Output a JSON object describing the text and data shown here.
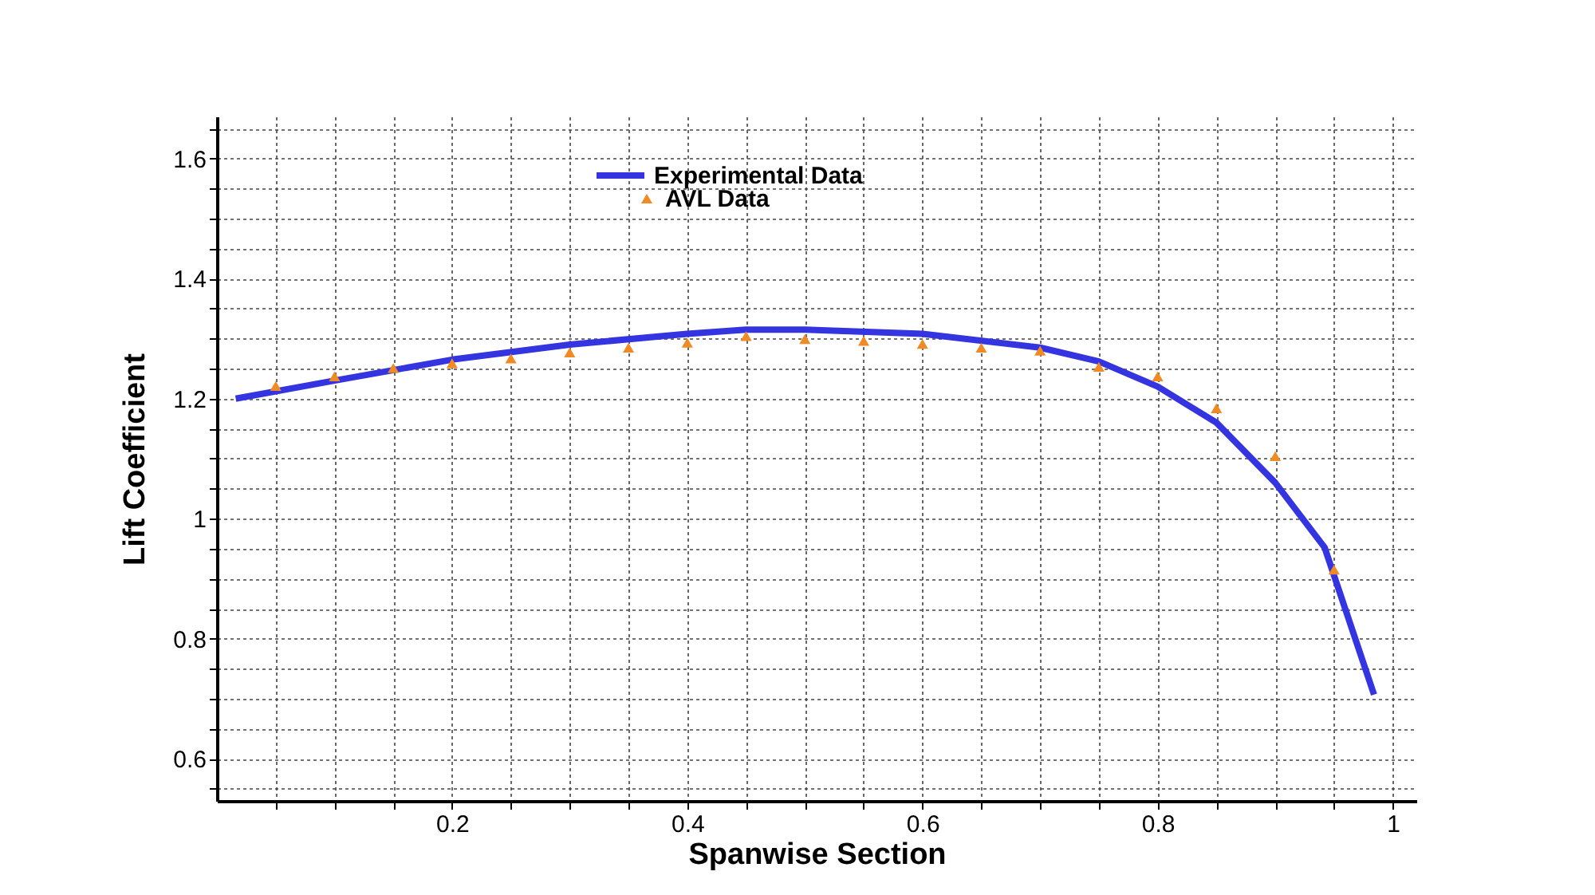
{
  "chart_data": {
    "type": "line",
    "xlabel": "Spanwise Section",
    "ylabel": "Lift Coefficient",
    "xlim": [
      0,
      1.02
    ],
    "ylim": [
      0.53,
      1.67
    ],
    "xticks": [
      {
        "value": 0.05,
        "label": null
      },
      {
        "value": 0.1,
        "label": null
      },
      {
        "value": 0.15,
        "label": null
      },
      0.2,
      {
        "value": 0.25,
        "label": null
      },
      {
        "value": 0.3,
        "label": null
      },
      {
        "value": 0.35,
        "label": null
      },
      0.4,
      {
        "value": 0.45,
        "label": null
      },
      {
        "value": 0.5,
        "label": null
      },
      {
        "value": 0.55,
        "label": null
      },
      0.6,
      {
        "value": 0.65,
        "label": null
      },
      {
        "value": 0.7,
        "label": null
      },
      {
        "value": 0.75,
        "label": null
      },
      0.8,
      {
        "value": 0.85,
        "label": null
      },
      {
        "value": 0.9,
        "label": null
      },
      {
        "value": 0.95,
        "label": null
      },
      1
    ],
    "yticks": [
      {
        "value": 0.55,
        "label": null
      },
      0.6,
      {
        "value": 0.65,
        "label": null
      },
      {
        "value": 0.7,
        "label": null
      },
      {
        "value": 0.75,
        "label": null
      },
      0.8,
      {
        "value": 0.85,
        "label": null
      },
      {
        "value": 0.9,
        "label": null
      },
      {
        "value": 0.95,
        "label": null
      },
      1,
      {
        "value": 1.05,
        "label": null
      },
      {
        "value": 1.1,
        "label": null
      },
      {
        "value": 1.15,
        "label": null
      },
      1.2,
      {
        "value": 1.25,
        "label": null
      },
      {
        "value": 1.3,
        "label": null
      },
      {
        "value": 1.35,
        "label": null
      },
      1.4,
      {
        "value": 1.45,
        "label": null
      },
      {
        "value": 1.5,
        "label": null
      },
      {
        "value": 1.55,
        "label": null
      },
      1.6,
      {
        "value": 1.65,
        "label": null
      }
    ],
    "grid": true,
    "legend": "top",
    "series": [
      {
        "name": "Experimental Data",
        "type": "line",
        "color": "#3434e0",
        "line_style": "solid",
        "x": [
          0.016,
          0.1,
          0.2,
          0.3,
          0.4,
          0.45,
          0.5,
          0.6,
          0.7,
          0.75,
          0.8,
          0.85,
          0.9,
          0.942,
          0.984
        ],
        "values": [
          1.2,
          1.23,
          1.265,
          1.29,
          1.308,
          1.315,
          1.315,
          1.308,
          1.285,
          1.262,
          1.22,
          1.16,
          1.06,
          0.952,
          0.707
        ]
      },
      {
        "name": "AVL Data",
        "type": "scatter",
        "marker": "triangle",
        "color": "#f08a24",
        "x": [
          0.05,
          0.1,
          0.15,
          0.2,
          0.25,
          0.3,
          0.35,
          0.4,
          0.45,
          0.5,
          0.55,
          0.6,
          0.65,
          0.7,
          0.75,
          0.8,
          0.85,
          0.9,
          0.95
        ],
        "values": [
          1.221,
          1.237,
          1.251,
          1.259,
          1.267,
          1.277,
          1.285,
          1.293,
          1.304,
          1.299,
          1.296,
          1.291,
          1.285,
          1.28,
          1.253,
          1.237,
          1.184,
          1.104,
          0.915
        ]
      }
    ]
  }
}
